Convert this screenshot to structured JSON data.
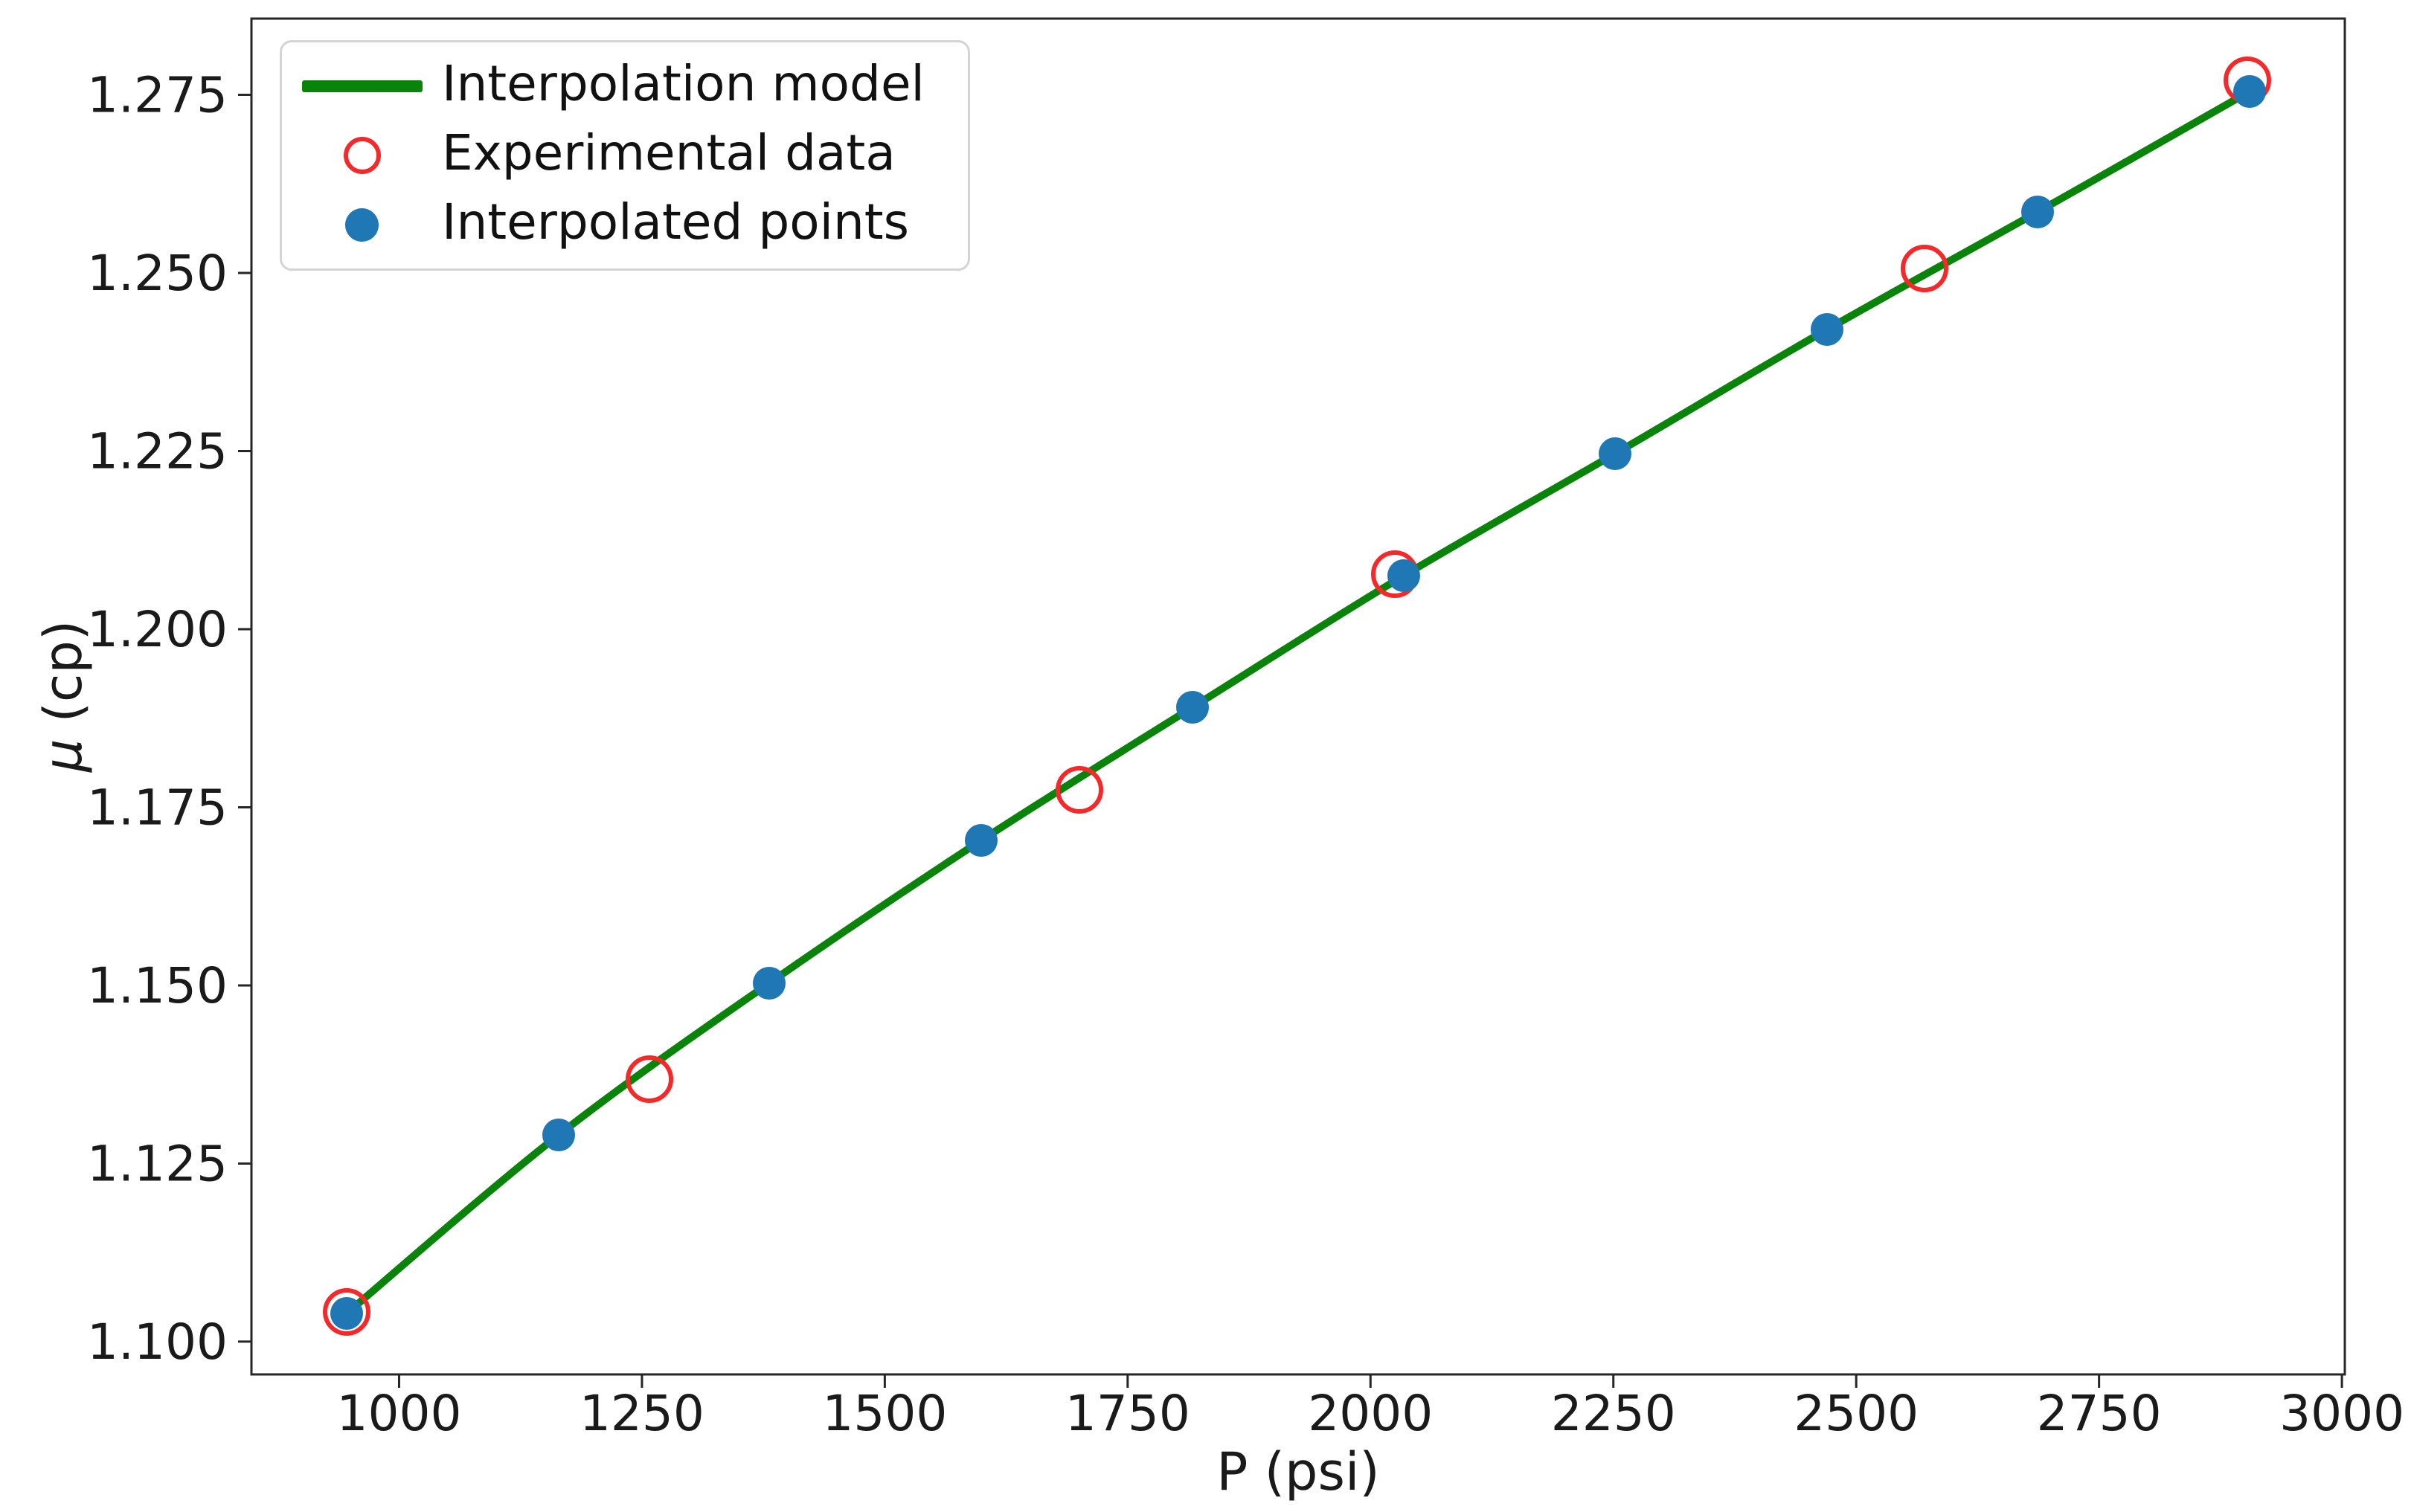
{
  "figure": {
    "background": "#ffffff"
  },
  "chart_data": {
    "type": "line+scatter",
    "title": "",
    "xlabel": "P (psi)",
    "ylabel": "μ (cp)",
    "ylabel_symbol": "μ",
    "ylabel_unit": " (cp)",
    "xlim": [
      848,
      3003
    ],
    "ylim": [
      1.0954,
      1.2857
    ],
    "x_ticks": [
      1000,
      1250,
      1500,
      1750,
      2000,
      2250,
      2500,
      2750,
      3000
    ],
    "y_ticks": [
      1.1,
      1.125,
      1.15,
      1.175,
      1.2,
      1.225,
      1.25,
      1.275
    ],
    "grid": false,
    "axis_color": "#262626",
    "text_color": "#1a1a1a",
    "legend_position": "upper left",
    "series": [
      {
        "name": "Interpolation model",
        "type": "line",
        "color": "#0a830a",
        "line_width": 10,
        "x": [
          946,
          1164,
          1381,
          1599,
          1817,
          2034,
          2252,
          2470,
          2687,
          2905
        ],
        "y": [
          1.104,
          1.129,
          1.1503,
          1.1703,
          1.189,
          1.2075,
          1.2246,
          1.2421,
          1.2586,
          1.2755
        ]
      },
      {
        "name": "Experimental data",
        "type": "scatter-open",
        "color": "#f42a2a",
        "marker_radius": 29,
        "marker_stroke": 6,
        "x": [
          946,
          1258,
          1700,
          2025,
          2570,
          2903
        ],
        "y": [
          1.1042,
          1.1368,
          1.1775,
          1.2077,
          1.2506,
          1.277
        ]
      },
      {
        "name": "Interpolated points",
        "type": "scatter-filled",
        "color": "#1f77b4",
        "marker_radius": 22,
        "x": [
          946,
          1164,
          1381,
          1599,
          1817,
          2034,
          2252,
          2470,
          2687,
          2905
        ],
        "y": [
          1.104,
          1.129,
          1.1503,
          1.1703,
          1.189,
          1.2075,
          1.2246,
          1.2421,
          1.2586,
          1.2755
        ]
      }
    ]
  }
}
